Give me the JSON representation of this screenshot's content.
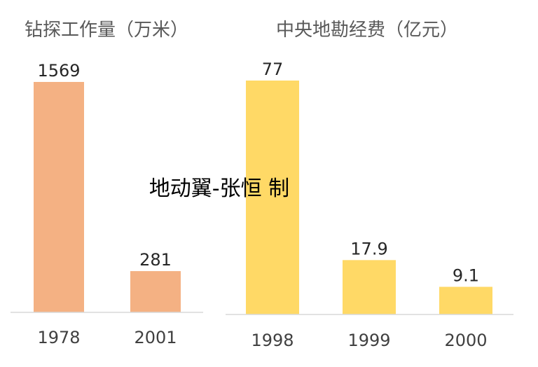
{
  "chart_data": [
    {
      "type": "bar",
      "title": "钻探工作量（万米）",
      "categories": [
        "1978",
        "2001"
      ],
      "values": [
        1569,
        281
      ],
      "color": "#F4B183",
      "xlabel": "",
      "ylabel": "",
      "grid": false,
      "legend": "none"
    },
    {
      "type": "bar",
      "title": "中央地勘经费（亿元）",
      "categories": [
        "1998",
        "1999",
        "2000"
      ],
      "values": [
        77,
        17.9,
        9.1
      ],
      "color": "#FFD966",
      "xlabel": "",
      "ylabel": "",
      "grid": false,
      "legend": "none"
    }
  ],
  "watermark": "地动翼-张恒 制",
  "colors": {
    "axis": "#D9D9D9"
  }
}
